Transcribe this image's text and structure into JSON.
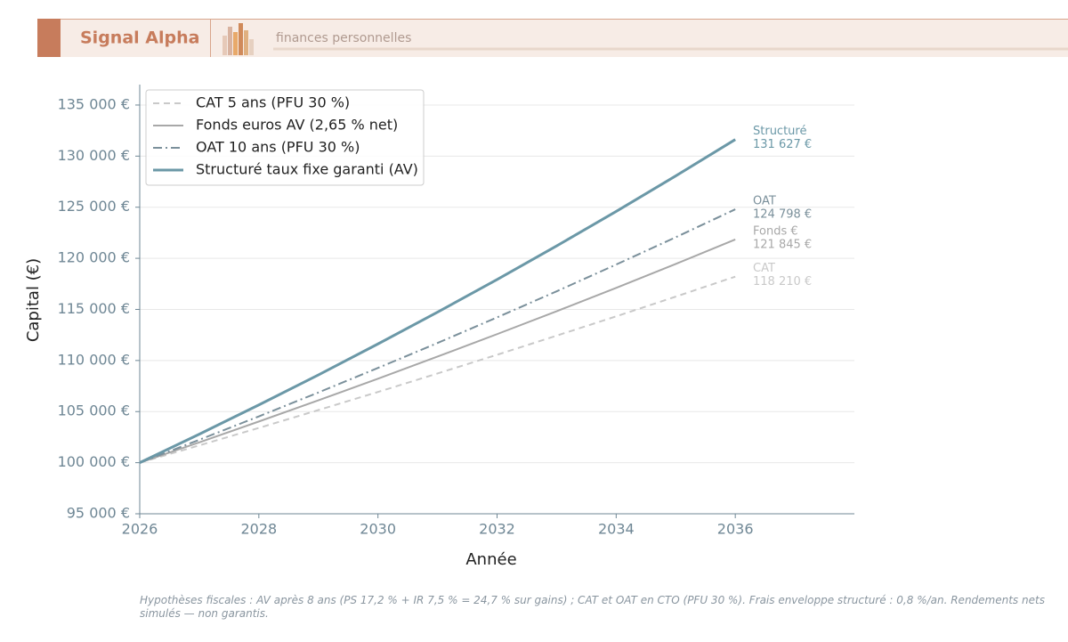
{
  "header": {
    "brand": "Signal Alpha",
    "tagline": "finances personnelles"
  },
  "chart_data": {
    "type": "line",
    "x_label": "Année",
    "y_label": "Capital (€)",
    "x": [
      2026,
      2027,
      2028,
      2029,
      2030,
      2031,
      2032,
      2033,
      2034,
      2035,
      2036
    ],
    "series": [
      {
        "name": "CAT 5 ans (PFU 30 %)",
        "short_name": "CAT",
        "color": "#c9c9c9",
        "dash": "dashed",
        "width": 2,
        "values": [
          100000,
          101690,
          103400,
          105150,
          106920,
          108730,
          110560,
          112430,
          114320,
          116250,
          118210
        ],
        "value_labels": [
          null,
          null,
          null,
          null,
          null,
          null,
          null,
          null,
          null,
          null,
          "118 210 €"
        ]
      },
      {
        "name": "Fonds euros AV (2,65 % net)",
        "short_name": "Fonds €",
        "color": "#a8a8a8",
        "dash": "solid",
        "width": 2,
        "values": [
          100000,
          101990,
          104030,
          106100,
          108220,
          110380,
          112580,
          114820,
          117110,
          119450,
          121845
        ],
        "value_labels": [
          null,
          null,
          null,
          null,
          null,
          null,
          null,
          null,
          null,
          null,
          "121 845 €"
        ]
      },
      {
        "name": "OAT 10 ans (PFU 30 %)",
        "short_name": "OAT",
        "color": "#7b909b",
        "dash": "dashdot",
        "width": 2,
        "values": [
          100000,
          102240,
          104530,
          106870,
          109270,
          111710,
          114220,
          116770,
          119390,
          122060,
          124798
        ],
        "value_labels": [
          null,
          null,
          null,
          null,
          null,
          null,
          null,
          null,
          null,
          null,
          "124 798 €"
        ]
      },
      {
        "name": "Structuré taux fixe garanti (AV)",
        "short_name": "Structuré",
        "color": "#6b98a7",
        "dash": "solid",
        "width": 3,
        "values": [
          100000,
          102790,
          105650,
          108590,
          111620,
          114730,
          117920,
          121210,
          124590,
          128060,
          131627
        ],
        "value_labels": [
          null,
          null,
          null,
          null,
          null,
          null,
          null,
          null,
          null,
          null,
          "131 627 €"
        ]
      }
    ],
    "xlim": [
      2026,
      2038
    ],
    "xticks": [
      2026,
      2028,
      2030,
      2032,
      2034,
      2036
    ],
    "ylim": [
      95000,
      137000
    ],
    "yticks": [
      {
        "value": 95000,
        "label": "95 000 €"
      },
      {
        "value": 100000,
        "label": "100 000 €"
      },
      {
        "value": 105000,
        "label": "105 000 €"
      },
      {
        "value": 110000,
        "label": "110 000 €"
      },
      {
        "value": 115000,
        "label": "115 000 €"
      },
      {
        "value": 120000,
        "label": "120 000 €"
      },
      {
        "value": 125000,
        "label": "125 000 €"
      },
      {
        "value": 130000,
        "label": "130 000 €"
      },
      {
        "value": 135000,
        "label": "135 000 €"
      }
    ],
    "grid": true,
    "legend": "upper left"
  },
  "footnote": "Hypothèses fiscales : AV après 8 ans (PS 17,2 % + IR 7,5 % = 24,7 % sur gains) ; CAT et OAT en CTO (PFU 30 %). Frais enveloppe structuré : 0,8 %/an. Rendements nets simulés — non garantis."
}
